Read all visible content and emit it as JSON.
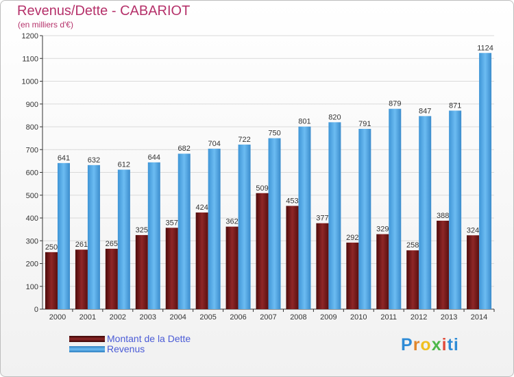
{
  "header": {
    "title": "Revenus/Dette - CABARIOT",
    "subtitle": "(en milliers d'€)"
  },
  "chart_data": {
    "type": "bar",
    "categories": [
      "2000",
      "2001",
      "2002",
      "2003",
      "2004",
      "2005",
      "2006",
      "2007",
      "2008",
      "2009",
      "2010",
      "2011",
      "2012",
      "2013",
      "2014"
    ],
    "series": [
      {
        "name": "Montant de la Dette",
        "color": "#7a1a1a",
        "values": [
          250,
          261,
          265,
          325,
          357,
          424,
          362,
          509,
          453,
          377,
          292,
          329,
          258,
          388,
          324
        ]
      },
      {
        "name": "Revenus",
        "color": "#4ea6e6",
        "values": [
          641,
          632,
          612,
          644,
          682,
          704,
          722,
          750,
          801,
          820,
          791,
          879,
          847,
          871,
          1124
        ]
      }
    ],
    "ylim": [
      0,
      1200
    ],
    "yticks": [
      0,
      100,
      200,
      300,
      400,
      500,
      600,
      700,
      800,
      900,
      1000,
      1100,
      1200
    ],
    "grid": true,
    "legend": "bottom-left"
  },
  "legend": {
    "items": [
      {
        "label": "Montant de la Dette",
        "color": "#7a1a1a"
      },
      {
        "label": "Revenus",
        "color": "#4ea6e6"
      }
    ]
  },
  "logo": {
    "letters": [
      "P",
      "r",
      "o",
      "x",
      "i",
      "t",
      "i"
    ]
  }
}
